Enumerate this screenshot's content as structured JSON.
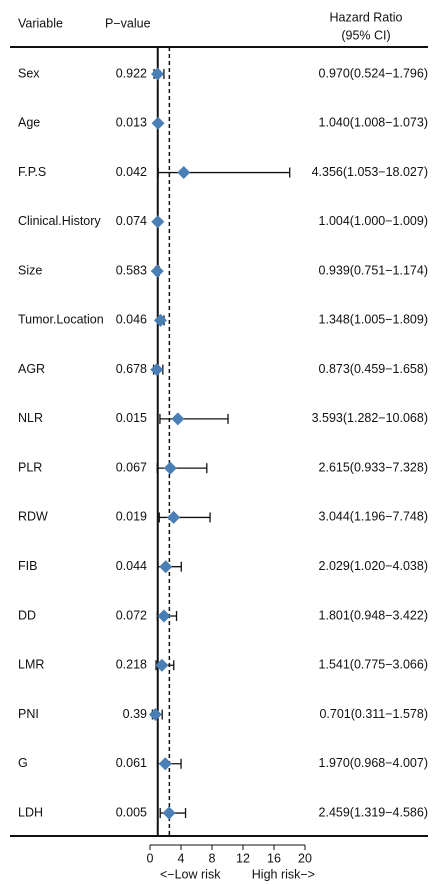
{
  "chart_data": {
    "type": "forest",
    "column_headers": {
      "variable": "Variable",
      "p_value": "P−value",
      "ratio": [
        "Hazard Ratio",
        "(95% CI)"
      ]
    },
    "categories": [
      "Sex",
      "Age",
      "F.P.S",
      "Clinical.History",
      "Size",
      "Tumor.Location",
      "AGR",
      "NLR",
      "PLR",
      "RDW",
      "FIB",
      "DD",
      "LMR",
      "PNI",
      "G",
      "LDH"
    ],
    "p_values": [
      0.922,
      0.013,
      0.042,
      0.074,
      0.583,
      0.046,
      0.678,
      0.015,
      0.067,
      0.019,
      0.044,
      0.072,
      0.218,
      0.39,
      0.061,
      0.005
    ],
    "values": [
      0.97,
      1.04,
      4.356,
      1.004,
      0.939,
      1.348,
      0.873,
      3.593,
      2.615,
      3.044,
      2.029,
      1.801,
      1.541,
      0.701,
      1.97,
      2.459
    ],
    "lower": [
      0.524,
      1.008,
      1.053,
      1.0,
      0.751,
      1.005,
      0.459,
      1.282,
      0.933,
      1.196,
      1.02,
      0.948,
      0.775,
      0.311,
      0.968,
      1.319
    ],
    "upper": [
      1.796,
      1.073,
      18.027,
      1.009,
      1.174,
      1.809,
      1.658,
      10.068,
      7.328,
      7.748,
      4.038,
      3.422,
      3.066,
      1.578,
      4.007,
      4.586
    ],
    "value_labels": [
      "0.970(0.524−1.796)",
      "1.040(1.008−1.073)",
      "4.356(1.053−18.027)",
      "1.004(1.000−1.009)",
      "0.939(0.751−1.174)",
      "1.348(1.005−1.809)",
      "0.873(0.459−1.658)",
      "3.593(1.282−10.068)",
      "2.615(0.933−7.328)",
      "3.044(1.196−7.748)",
      "2.029(1.020−4.038)",
      "1.801(0.948−3.422)",
      "1.541(0.775−3.066)",
      "0.701(0.311−1.578)",
      "1.970(0.968−4.007)",
      "2.459(1.319−4.586)"
    ],
    "color": "#4a7fb5",
    "xlim": [
      0,
      20
    ],
    "xticks": [
      0,
      4,
      8,
      12,
      16,
      20
    ],
    "reference_line": 1,
    "dashed_line": 2.5,
    "x_labels": [
      "<−Low risk",
      "High risk−>"
    ]
  }
}
